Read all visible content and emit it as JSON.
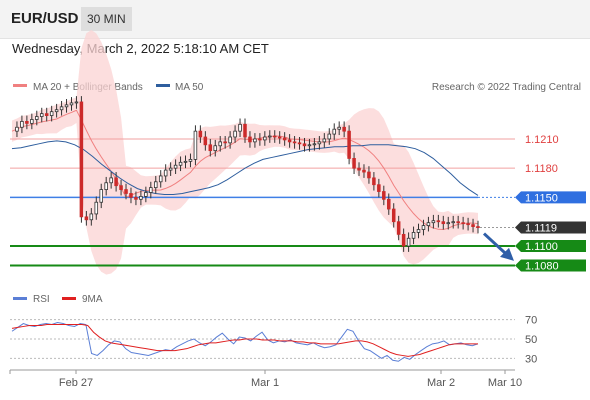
{
  "header": {
    "pair": "EUR/USD",
    "timeframe": "30 MIN"
  },
  "date_line": "Wednesday, March 2, 2022 5:18:10 AM CET",
  "legend": {
    "ma20": {
      "label": "MA 20 + Bollinger Bands",
      "color": "#f08080"
    },
    "ma50": {
      "label": "MA 50",
      "color": "#2e5e9e"
    },
    "credit": "Research © 2022 Trading Central"
  },
  "rsi_legend": {
    "rsi": {
      "label": "RSI",
      "color": "#5b7fd6"
    },
    "ma": {
      "label": "9MA",
      "color": "#e02020"
    }
  },
  "chart_data": [
    {
      "type": "candlestick",
      "instrument": "EUR/USD",
      "timeframe": "30 MIN",
      "ylim": [
        1.106,
        1.125
      ],
      "x_tick_labels": [
        "Feb 27",
        "Mar 1",
        "Mar 2",
        "Mar 10"
      ],
      "price_levels": [
        {
          "label": "1.1210",
          "value": 1.121,
          "kind": "resistance"
        },
        {
          "label": "1.1180",
          "value": 1.118,
          "kind": "resistance"
        },
        {
          "label": "1.1150",
          "value": 1.115,
          "kind": "pivot"
        },
        {
          "label": "1.1119",
          "value": 1.1119,
          "kind": "last"
        },
        {
          "label": "1.1100",
          "value": 1.11,
          "kind": "support"
        },
        {
          "label": "1.1080",
          "value": 1.108,
          "kind": "support"
        }
      ],
      "close_path": [
        1.1218,
        1.1222,
        1.1228,
        1.1226,
        1.123,
        1.1233,
        1.1236,
        1.1234,
        1.1238,
        1.124,
        1.1243,
        1.1245,
        1.1247,
        1.1248,
        1.113,
        1.1127,
        1.1133,
        1.1145,
        1.1158,
        1.1165,
        1.117,
        1.1162,
        1.1158,
        1.1154,
        1.115,
        1.1148,
        1.1151,
        1.1155,
        1.116,
        1.1166,
        1.1172,
        1.1178,
        1.118,
        1.1183,
        1.1186,
        1.1187,
        1.1189,
        1.1218,
        1.1212,
        1.1204,
        1.1198,
        1.1203,
        1.1207,
        1.1206,
        1.1212,
        1.1218,
        1.1225,
        1.1212,
        1.1207,
        1.121,
        1.1209,
        1.1212,
        1.1213,
        1.1212,
        1.1211,
        1.1209,
        1.1207,
        1.1206,
        1.1205,
        1.1203,
        1.1204,
        1.1205,
        1.1207,
        1.121,
        1.1215,
        1.122,
        1.1222,
        1.1218,
        1.119,
        1.118,
        1.1178,
        1.1176,
        1.117,
        1.1163,
        1.1156,
        1.1148,
        1.1138,
        1.1125,
        1.1112,
        1.11,
        1.1108,
        1.1114,
        1.1117,
        1.1121,
        1.1124,
        1.1126,
        1.1125,
        1.1123,
        1.1124,
        1.1125,
        1.1124,
        1.1123,
        1.1122,
        1.112,
        1.1119
      ],
      "ma50_path": [
        1.12,
        1.1201,
        1.1203,
        1.1205,
        1.1207,
        1.1208,
        1.1207,
        1.1204,
        1.1199,
        1.1192,
        1.1184,
        1.1177,
        1.117,
        1.1164,
        1.1159,
        1.1156,
        1.1154,
        1.1153,
        1.1153,
        1.1154,
        1.1156,
        1.1158,
        1.116,
        1.1163,
        1.1168,
        1.1174,
        1.118,
        1.1185,
        1.1189,
        1.1191,
        1.1193,
        1.1195,
        1.1197,
        1.1199,
        1.12,
        1.1201,
        1.1202,
        1.1202,
        1.1203,
        1.1203,
        1.1204,
        1.1204,
        1.1204,
        1.1203,
        1.1202,
        1.12,
        1.1196,
        1.119,
        1.1182,
        1.1174,
        1.1165,
        1.1158,
        1.1152
      ],
      "projection": {
        "from": 1.1119,
        "to": 1.1092
      }
    },
    {
      "type": "line",
      "name": "RSI",
      "ylim": [
        20,
        80
      ],
      "y_ticks": [
        30,
        50,
        70
      ],
      "series": [
        {
          "name": "RSI",
          "color": "#5b7fd6",
          "values": [
            58,
            62,
            66,
            64,
            63,
            65,
            66,
            65,
            67,
            66,
            64,
            63,
            66,
            65,
            35,
            33,
            38,
            44,
            48,
            47,
            40,
            36,
            35,
            34,
            33,
            35,
            37,
            39,
            38,
            42,
            45,
            48,
            50,
            46,
            43,
            47,
            52,
            56,
            50,
            45,
            52,
            51,
            48,
            53,
            57,
            49,
            46,
            48,
            47,
            49,
            46,
            45,
            44,
            46,
            43,
            41,
            42,
            44,
            52,
            60,
            58,
            48,
            40,
            38,
            34,
            30,
            33,
            28,
            27,
            31,
            29,
            34,
            38,
            42,
            45,
            46,
            48,
            44,
            45,
            46,
            44,
            43,
            45
          ]
        },
        {
          "name": "9MA",
          "color": "#e02020",
          "values": [
            61,
            62,
            63,
            64,
            64,
            64,
            65,
            65,
            65,
            65,
            65,
            65,
            65,
            64,
            57,
            52,
            48,
            46,
            45,
            44,
            43,
            42,
            41,
            40,
            39,
            38,
            38,
            38,
            38,
            39,
            40,
            42,
            44,
            45,
            46,
            46,
            47,
            48,
            49,
            49,
            50,
            50,
            50,
            49,
            49,
            49,
            48,
            48,
            48,
            47,
            47,
            46,
            46,
            45,
            45,
            45,
            45,
            46,
            47,
            48,
            48,
            47,
            45,
            42,
            39,
            36,
            34,
            33,
            32,
            33,
            34,
            36,
            38,
            40,
            42,
            44,
            45,
            45,
            45,
            45,
            45
          ]
        }
      ]
    }
  ]
}
